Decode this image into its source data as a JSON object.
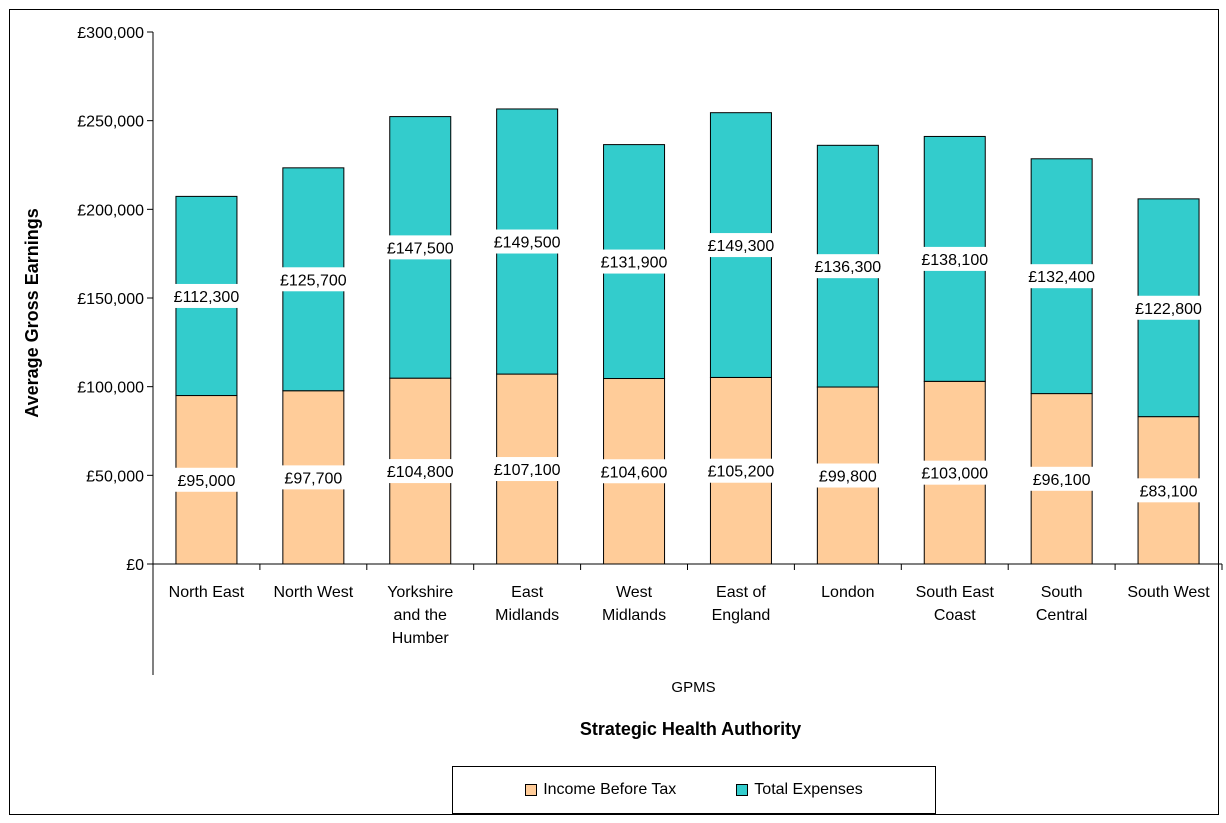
{
  "chart_data": {
    "type": "bar",
    "stacked": true,
    "categories": [
      [
        "North East"
      ],
      [
        "North West"
      ],
      [
        "Yorkshire",
        "and the",
        "Humber"
      ],
      [
        "East",
        "Midlands"
      ],
      [
        "West",
        "Midlands"
      ],
      [
        "East of",
        "England"
      ],
      [
        "London"
      ],
      [
        "South East",
        "Coast"
      ],
      [
        "South",
        "Central"
      ],
      [
        "South West"
      ]
    ],
    "series": [
      {
        "name": "Income Before Tax",
        "color": "#ffcc99",
        "values": [
          95000,
          97700,
          104800,
          107100,
          104600,
          105200,
          99800,
          103000,
          96100,
          83100
        ],
        "labels": [
          "£95,000",
          "£97,700",
          "£104,800",
          "£107,100",
          "£104,600",
          "£105,200",
          "£99,800",
          "£103,000",
          "£96,100",
          "£83,100"
        ]
      },
      {
        "name": "Total Expenses",
        "color": "#33cccc",
        "values": [
          112300,
          125700,
          147500,
          149500,
          131900,
          149300,
          136300,
          138100,
          132400,
          122800
        ],
        "labels": [
          "£112,300",
          "£125,700",
          "£147,500",
          "£149,500",
          "£131,900",
          "£149,300",
          "£136,300",
          "£138,100",
          "£132,400",
          "£122,800"
        ]
      }
    ],
    "ylim": [
      0,
      300000
    ],
    "yticks": [
      0,
      50000,
      100000,
      150000,
      200000,
      250000,
      300000
    ],
    "ytick_labels": [
      "£0",
      "£50,000",
      "£100,000",
      "£150,000",
      "£200,000",
      "£250,000",
      "£300,000"
    ],
    "ylabel": "Average Gross Earnings",
    "group_label": "GPMS",
    "xlabel": "Strategic Health Authority",
    "grid": false,
    "legend_position": "bottom"
  }
}
